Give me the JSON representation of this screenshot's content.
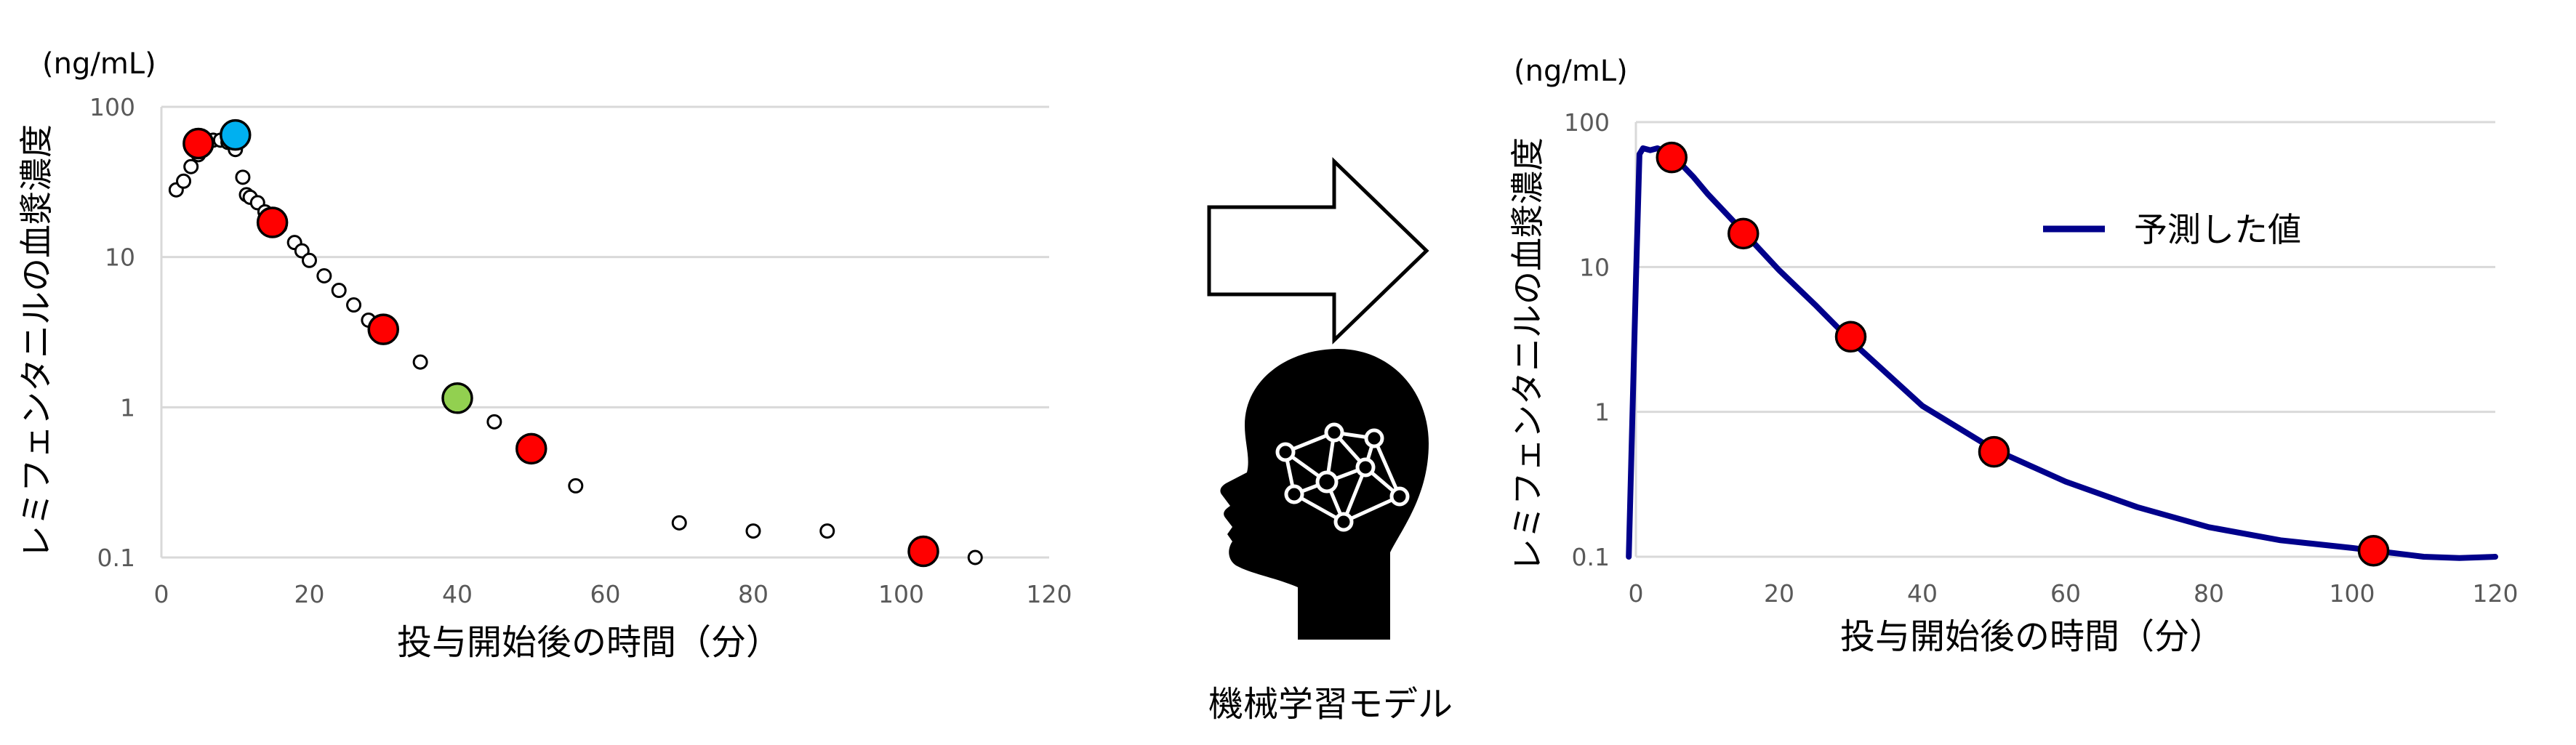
{
  "charts": {
    "observed": {
      "unit": "(ng/mL)",
      "ylabel": "レミフェンタニルの血漿濃度",
      "xlabel": "投与開始後の時間（分）",
      "xticks": [
        "0",
        "20",
        "40",
        "60",
        "80",
        "100",
        "120"
      ],
      "yticks": [
        "0.1",
        "1",
        "10",
        "100"
      ]
    },
    "predicted": {
      "unit": "(ng/mL)",
      "ylabel": "レミフェンタニルの血漿濃度",
      "xlabel": "投与開始後の時間（分）",
      "xticks": [
        "0",
        "20",
        "40",
        "60",
        "80",
        "100",
        "120"
      ],
      "yticks": [
        "0.1",
        "1",
        "10",
        "100"
      ],
      "legend": "予測した値"
    }
  },
  "middle": {
    "caption": "機械学習モデル",
    "arrow_icon": "right-arrow-icon",
    "brain_icon": "head-neural-network-icon"
  },
  "colors": {
    "red_marker": "#ff0000",
    "blue_marker": "#00b0f0",
    "green_marker": "#92d050",
    "curve": "#00008b",
    "grid": "#d9d9d9"
  },
  "chart_data": [
    {
      "type": "scatter",
      "xlim": [
        0,
        120
      ],
      "ylim": [
        0.1,
        100
      ],
      "yscale": "log",
      "grid": true,
      "series": [
        {
          "marker": "small-open-circle",
          "x": [
            2,
            3,
            4,
            5,
            6,
            7,
            8,
            9,
            10,
            11,
            11.5,
            12,
            13,
            14,
            16,
            18,
            19,
            20,
            22,
            24,
            26,
            28,
            35,
            45,
            56,
            70,
            80,
            90,
            110
          ],
          "y": [
            28,
            32,
            40,
            48,
            55,
            60,
            60,
            58,
            52,
            34,
            26,
            25,
            23,
            20,
            16,
            12.5,
            11,
            9.5,
            7.5,
            6,
            4.8,
            3.8,
            2,
            0.8,
            0.3,
            0.17,
            0.15,
            0.15,
            0.1
          ]
        },
        {
          "marker": "red-circle",
          "x": [
            5,
            15,
            30,
            50,
            103
          ],
          "y": [
            57,
            17,
            3.3,
            0.53,
            0.11
          ]
        },
        {
          "marker": "blue-circle",
          "x": [
            10
          ],
          "y": [
            65
          ]
        },
        {
          "marker": "green-circle",
          "x": [
            40
          ],
          "y": [
            1.15
          ]
        }
      ]
    },
    {
      "type": "line",
      "xlim": [
        0,
        120
      ],
      "ylim": [
        0.1,
        100
      ],
      "yscale": "log",
      "grid": true,
      "legend_position": "top-right",
      "series": [
        {
          "name": "予測した値",
          "x": [
            -1,
            0,
            0.5,
            1,
            2,
            3,
            4,
            5,
            8,
            10,
            15,
            20,
            25,
            30,
            40,
            50,
            60,
            70,
            80,
            90,
            100,
            110,
            115,
            120
          ],
          "y": [
            0.1,
            8,
            60,
            66,
            64,
            66,
            63,
            60,
            42,
            32,
            17.5,
            9.5,
            5.5,
            3.1,
            1.1,
            0.55,
            0.33,
            0.22,
            0.16,
            0.13,
            0.115,
            0.1,
            0.098,
            0.1
          ]
        },
        {
          "marker": "red-circle",
          "x": [
            5,
            15,
            30,
            50,
            103
          ],
          "y": [
            57,
            17,
            3.3,
            0.53,
            0.11
          ]
        }
      ]
    }
  ]
}
